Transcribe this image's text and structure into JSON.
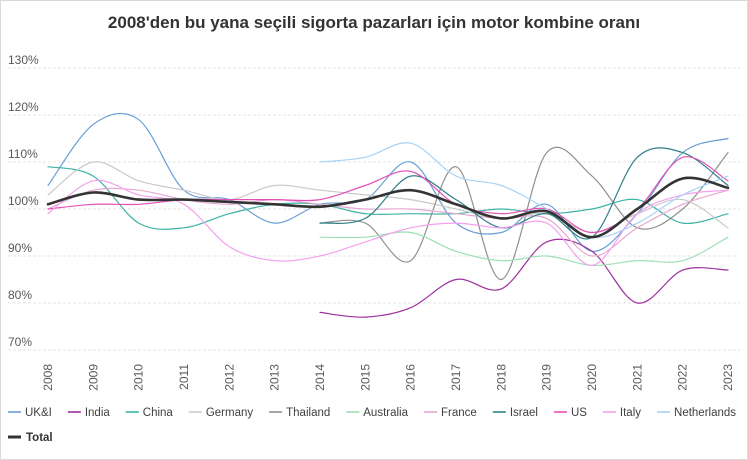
{
  "chart_data": {
    "type": "line",
    "title": "2008'den bu yana seçili sigorta pazarları için motor kombine oranı",
    "xlabel": "",
    "ylabel": "",
    "x": [
      "2008",
      "2009",
      "2010",
      "2011",
      "2012",
      "2013",
      "2014",
      "2015",
      "2016",
      "2017",
      "2018",
      "2019",
      "2020",
      "2021",
      "2022",
      "2023"
    ],
    "ylim": [
      70,
      130
    ],
    "yticks": [
      70,
      80,
      90,
      100,
      110,
      120,
      130
    ],
    "ytick_labels": [
      "70%",
      "80%",
      "90%",
      "100%",
      "110%",
      "120%",
      "130%"
    ],
    "grid": true,
    "legend_position": "bottom",
    "series": [
      {
        "name": "UK&I",
        "color": "#6a9fd6",
        "width": 1.2,
        "values": [
          105,
          118,
          119,
          104,
          102,
          97,
          101,
          102,
          110,
          97,
          95,
          101,
          91,
          99,
          112,
          115
        ]
      },
      {
        "name": "India",
        "color": "#9c2f9c",
        "width": 1.2,
        "values": [
          null,
          null,
          null,
          null,
          null,
          null,
          78,
          77,
          79,
          85,
          83,
          93,
          91,
          80,
          87,
          87
        ]
      },
      {
        "name": "China",
        "color": "#3db3a6",
        "width": 1.2,
        "values": [
          109,
          107,
          97,
          96,
          99,
          101,
          101,
          99,
          99,
          99,
          100,
          99,
          100,
          102,
          97,
          99
        ]
      },
      {
        "name": "Germany",
        "color": "#c9c9c9",
        "width": 1.2,
        "values": [
          103,
          110,
          106,
          104,
          102,
          105,
          104,
          103,
          102,
          100,
          98,
          99,
          95,
          99,
          102,
          96
        ]
      },
      {
        "name": "Thailand",
        "color": "#8f8f8f",
        "width": 1.2,
        "values": [
          null,
          null,
          null,
          null,
          null,
          null,
          97,
          97,
          89,
          109,
          85,
          112,
          107,
          96,
          100,
          112
        ]
      },
      {
        "name": "Australia",
        "color": "#9ee0b5",
        "width": 1.2,
        "values": [
          null,
          null,
          null,
          null,
          null,
          null,
          94,
          94,
          95,
          91,
          89,
          90,
          88,
          89,
          89,
          94
        ]
      },
      {
        "name": "France",
        "color": "#e6a8d2",
        "width": 1.2,
        "values": [
          100,
          104,
          104,
          102,
          101,
          102,
          101,
          100,
          100,
          99,
          98,
          98,
          90,
          96,
          101,
          104
        ]
      },
      {
        "name": "Israel",
        "color": "#2e7f87",
        "width": 1.2,
        "values": [
          null,
          null,
          null,
          null,
          null,
          null,
          97,
          98,
          107,
          102,
          96,
          99,
          94,
          111,
          112,
          105
        ]
      },
      {
        "name": "US",
        "color": "#e24fb7",
        "width": 1.2,
        "values": [
          100,
          101,
          101,
          102,
          102,
          102,
          102,
          105,
          108,
          101,
          99,
          100,
          95,
          100,
          111,
          106
        ]
      },
      {
        "name": "Italy",
        "color": "#f4a0ee",
        "width": 1.2,
        "values": [
          99,
          106,
          103,
          101,
          92,
          89,
          90,
          93,
          96,
          97,
          96,
          97,
          88,
          99,
          103,
          104
        ]
      },
      {
        "name": "Netherlands",
        "color": "#a5d4f7",
        "width": 1.2,
        "values": [
          null,
          null,
          null,
          null,
          null,
          null,
          110,
          111,
          114,
          107,
          105,
          100,
          94,
          97,
          103,
          107
        ]
      },
      {
        "name": "Total",
        "color": "#333333",
        "width": 2.6,
        "values": [
          101,
          103.5,
          102,
          102,
          101.5,
          101,
          100.5,
          102,
          104,
          101,
          98,
          99.5,
          94,
          100,
          106.5,
          104.5
        ]
      }
    ]
  }
}
